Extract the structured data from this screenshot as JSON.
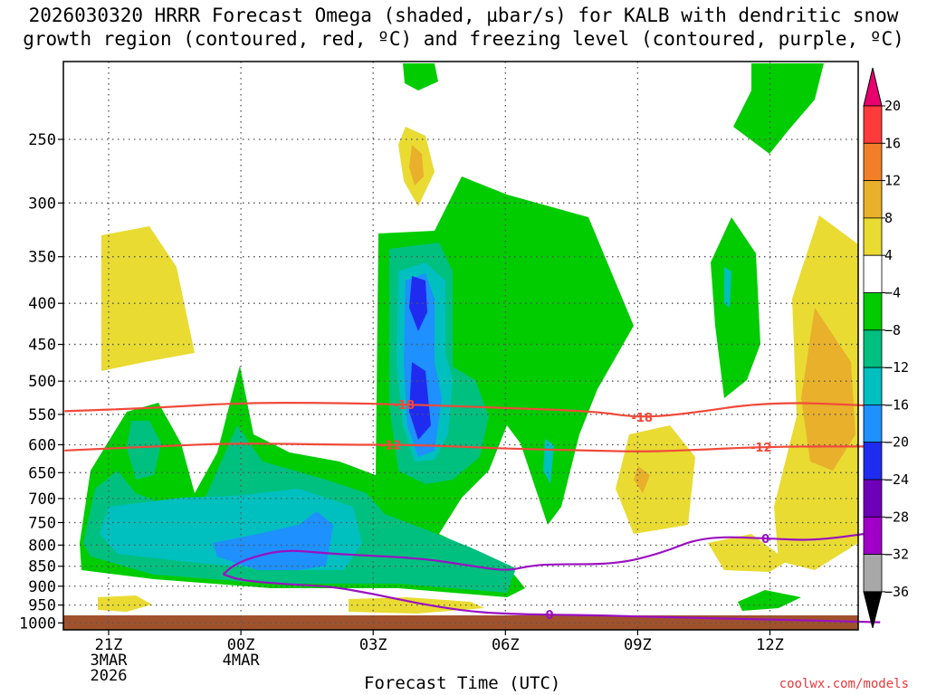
{
  "title_line1": "2026030320 HRRR Forecast Omega (shaded, µbar/s) for KALB with dendritic snow",
  "title_line2": "growth region (contoured, red, ºC) and freezing level (contoured, purple, ºC)",
  "credit": "coolwx.com/models",
  "chart_data": {
    "type": "heatmap",
    "xlabel": "Forecast Time (UTC)",
    "x_ticks": [
      {
        "hour": 0,
        "lines": [
          "21Z",
          "3MAR",
          "2026"
        ]
      },
      {
        "hour": 3,
        "lines": [
          "00Z",
          "4MAR"
        ]
      },
      {
        "hour": 6,
        "lines": [
          "03Z"
        ]
      },
      {
        "hour": 9,
        "lines": [
          "06Z"
        ]
      },
      {
        "hour": 12,
        "lines": [
          "09Z"
        ]
      },
      {
        "hour": 15,
        "lines": [
          "12Z"
        ]
      }
    ],
    "xlim": [
      -1,
      17.5
    ],
    "y_ticks": [
      250,
      300,
      350,
      400,
      450,
      500,
      550,
      600,
      650,
      700,
      750,
      800,
      850,
      900,
      950,
      1000
    ],
    "ylim": [
      200,
      1020
    ],
    "y_scale": "pressure",
    "colorbar": {
      "labels": [
        "20",
        "16",
        "12",
        "8",
        "4",
        "−4",
        "−8",
        "−12",
        "−16",
        "−20",
        "−24",
        "−28",
        "−32",
        "−36"
      ],
      "bands": [
        "#ff3a3a",
        "#f07f28",
        "#e9b02c",
        "#e9db32",
        "#ffffff",
        "#00cc00",
        "#00c080",
        "#00bfbf",
        "#1e90ff",
        "#1f2cf0",
        "#6e00b8",
        "#a000c8",
        "#a8a8a8"
      ],
      "top_arrow": "#e8006f",
      "bottom_arrow": "#000000"
    },
    "contours": [
      {
        "label": "-18",
        "color": "#f04a3a",
        "points": [
          [
            -1,
            545
          ],
          [
            1,
            540
          ],
          [
            3,
            532
          ],
          [
            5,
            532
          ],
          [
            7,
            535
          ],
          [
            9,
            540
          ],
          [
            11,
            545
          ],
          [
            12,
            555
          ],
          [
            13,
            550
          ],
          [
            15,
            530
          ],
          [
            17.5,
            537
          ]
        ]
      },
      {
        "label": "-12",
        "color": "#f04a3a",
        "points": [
          [
            -1,
            610
          ],
          [
            1,
            603
          ],
          [
            3,
            597
          ],
          [
            5,
            600
          ],
          [
            7,
            600
          ],
          [
            9,
            607
          ],
          [
            11,
            610
          ],
          [
            12,
            612
          ],
          [
            13,
            610
          ],
          [
            15,
            603
          ],
          [
            17.5,
            603
          ]
        ]
      },
      {
        "label": "0",
        "color": "#9a10c0",
        "points": [
          [
            2.6,
            870
          ],
          [
            2.8,
            850
          ],
          [
            3.2,
            830
          ],
          [
            4,
            810
          ],
          [
            5,
            820
          ],
          [
            7,
            830
          ],
          [
            8,
            845
          ],
          [
            9,
            862
          ],
          [
            9.5,
            850
          ],
          [
            10,
            845
          ],
          [
            11.5,
            845
          ],
          [
            12.5,
            820
          ],
          [
            13.5,
            780
          ],
          [
            15,
            785
          ],
          [
            16,
            790
          ],
          [
            17.5,
            770
          ]
        ]
      },
      {
        "label": "0",
        "color": "#9a10c0",
        "points": [
          [
            2.6,
            870
          ],
          [
            3,
            885
          ],
          [
            4,
            895
          ],
          [
            5,
            900
          ],
          [
            6,
            920
          ],
          [
            7,
            945
          ],
          [
            8,
            965
          ],
          [
            9,
            975
          ],
          [
            11,
            978
          ],
          [
            13,
            985
          ],
          [
            15,
            990
          ],
          [
            17.5,
            998
          ]
        ]
      }
    ]
  }
}
